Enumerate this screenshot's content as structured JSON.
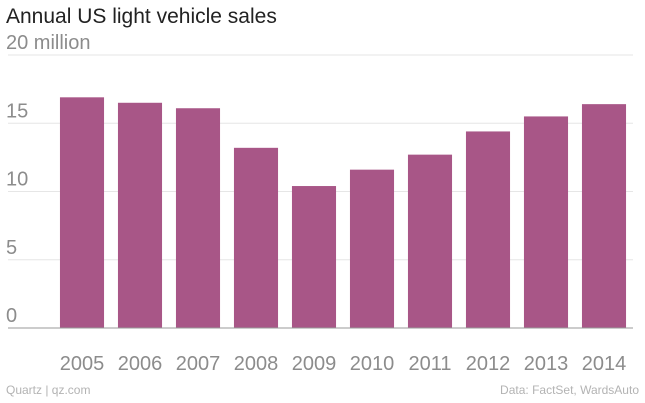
{
  "header": {
    "title": "Annual US light vehicle sales"
  },
  "footer": {
    "source_left": "Quartz | qz.com",
    "source_right": "Data: FactSet, WardsAuto"
  },
  "chart_data": {
    "type": "bar",
    "title": "Annual US light vehicle sales",
    "xlabel": "",
    "ylabel": "",
    "unit_label": "20 million",
    "categories": [
      "2005",
      "2006",
      "2007",
      "2008",
      "2009",
      "2010",
      "2011",
      "2012",
      "2013",
      "2014"
    ],
    "values": [
      16.9,
      16.5,
      16.1,
      13.2,
      10.4,
      11.6,
      12.7,
      14.4,
      15.5,
      16.4
    ],
    "ylim": [
      0,
      20
    ],
    "yticks": [
      0,
      5,
      10,
      15,
      20
    ],
    "ytick_labels": [
      "0",
      "5",
      "10",
      "15",
      "20 million"
    ],
    "grid": true,
    "legend": "none",
    "colors": {
      "bar": "#a85687",
      "grid": "#e6e6e6",
      "axis": "#999999"
    }
  }
}
